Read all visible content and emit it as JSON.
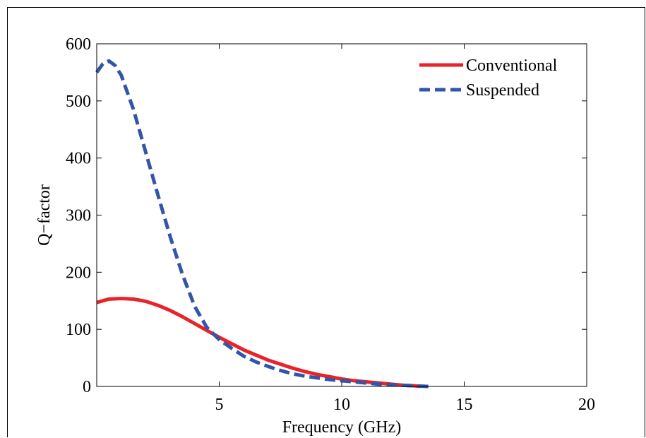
{
  "chart_data": {
    "type": "line",
    "xlabel": "Frequency (GHz)",
    "ylabel": "Q−factor",
    "xlim": [
      0,
      20
    ],
    "ylim": [
      0,
      600
    ],
    "x_ticks": [
      5,
      10,
      15,
      20
    ],
    "y_ticks": [
      0,
      100,
      200,
      300,
      400,
      500,
      600
    ],
    "grid": false,
    "legend_position": "top-right",
    "series": [
      {
        "name": "Conventional",
        "color": "#e8232a",
        "style": "solid",
        "x": [
          0.0,
          0.5,
          1.0,
          1.5,
          2.0,
          2.5,
          3.0,
          3.5,
          4.0,
          4.5,
          5.0,
          5.5,
          6.0,
          6.5,
          7.0,
          7.5,
          8.0,
          8.5,
          9.0,
          9.5,
          10.0,
          10.5,
          11.0,
          11.5,
          12.0,
          12.5,
          13.0,
          13.2
        ],
        "y": [
          147,
          153,
          154,
          153,
          149,
          142,
          133,
          122,
          110,
          98,
          86,
          75,
          64,
          55,
          46,
          39,
          32,
          26,
          21,
          17,
          13,
          10,
          8,
          6,
          4,
          2,
          1,
          0
        ]
      },
      {
        "name": "Suspended",
        "color": "#3355a8",
        "style": "dashed",
        "x": [
          0.0,
          0.25,
          0.5,
          0.75,
          1.0,
          1.5,
          2.0,
          2.5,
          3.0,
          3.5,
          4.0,
          4.5,
          5.0,
          5.5,
          6.0,
          6.5,
          7.0,
          7.5,
          8.0,
          8.5,
          9.0,
          9.5,
          10.0,
          10.5,
          11.0,
          11.5,
          12.0,
          12.5,
          13.0,
          13.5,
          13.7
        ],
        "y": [
          550,
          565,
          570,
          562,
          545,
          485,
          410,
          335,
          262,
          196,
          140,
          103,
          82,
          67,
          53,
          43,
          35,
          28,
          22,
          18,
          15,
          12,
          10,
          8,
          6,
          4,
          3,
          2,
          1,
          0,
          0
        ]
      }
    ]
  }
}
